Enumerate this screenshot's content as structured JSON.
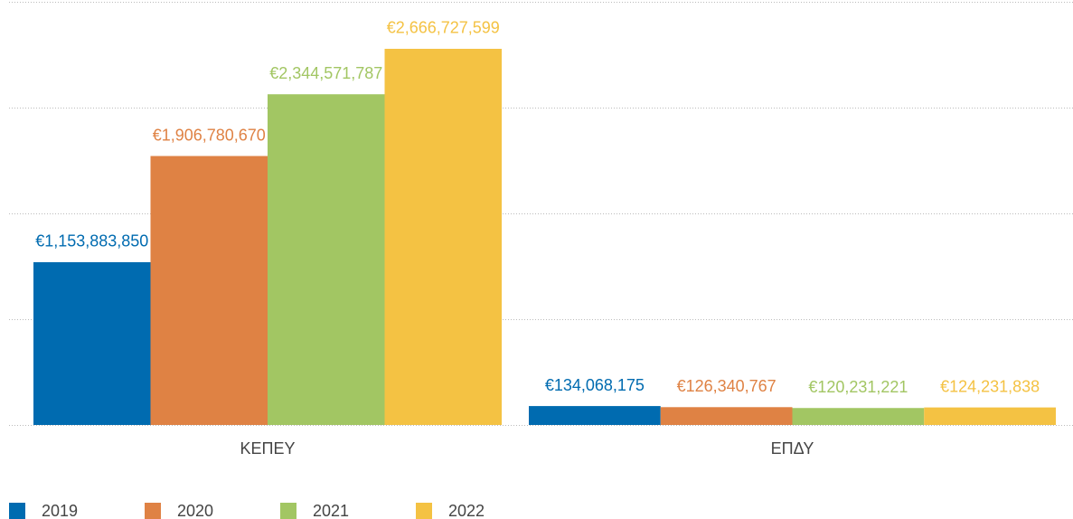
{
  "chart_data": {
    "type": "bar",
    "categories": [
      "ΚΕΠΕΥ",
      "ΕΠΔΥ"
    ],
    "series": [
      {
        "name": "2019",
        "color": "#006bb0",
        "values": [
          1153883850,
          134068175
        ],
        "value_labels": [
          "€1,153,883,850",
          "€134,068,175"
        ]
      },
      {
        "name": "2020",
        "color": "#df8244",
        "values": [
          1906780670,
          126340767
        ],
        "value_labels": [
          "€1,906,780,670",
          "€126,340,767"
        ]
      },
      {
        "name": "2021",
        "color": "#a2c663",
        "values": [
          2344571787,
          120231221
        ],
        "value_labels": [
          "€2,344,571,787",
          "€120,231,221"
        ]
      },
      {
        "name": "2022",
        "color": "#f4c243",
        "values": [
          2666727599,
          124231838
        ],
        "value_labels": [
          "€2,666,727,599",
          "€124,231,838"
        ]
      }
    ],
    "ylim": [
      0,
      3000000000
    ],
    "yticks": [
      0,
      750000000,
      1500000000,
      2250000000,
      3000000000
    ],
    "grid": true,
    "legend": "bottom"
  }
}
